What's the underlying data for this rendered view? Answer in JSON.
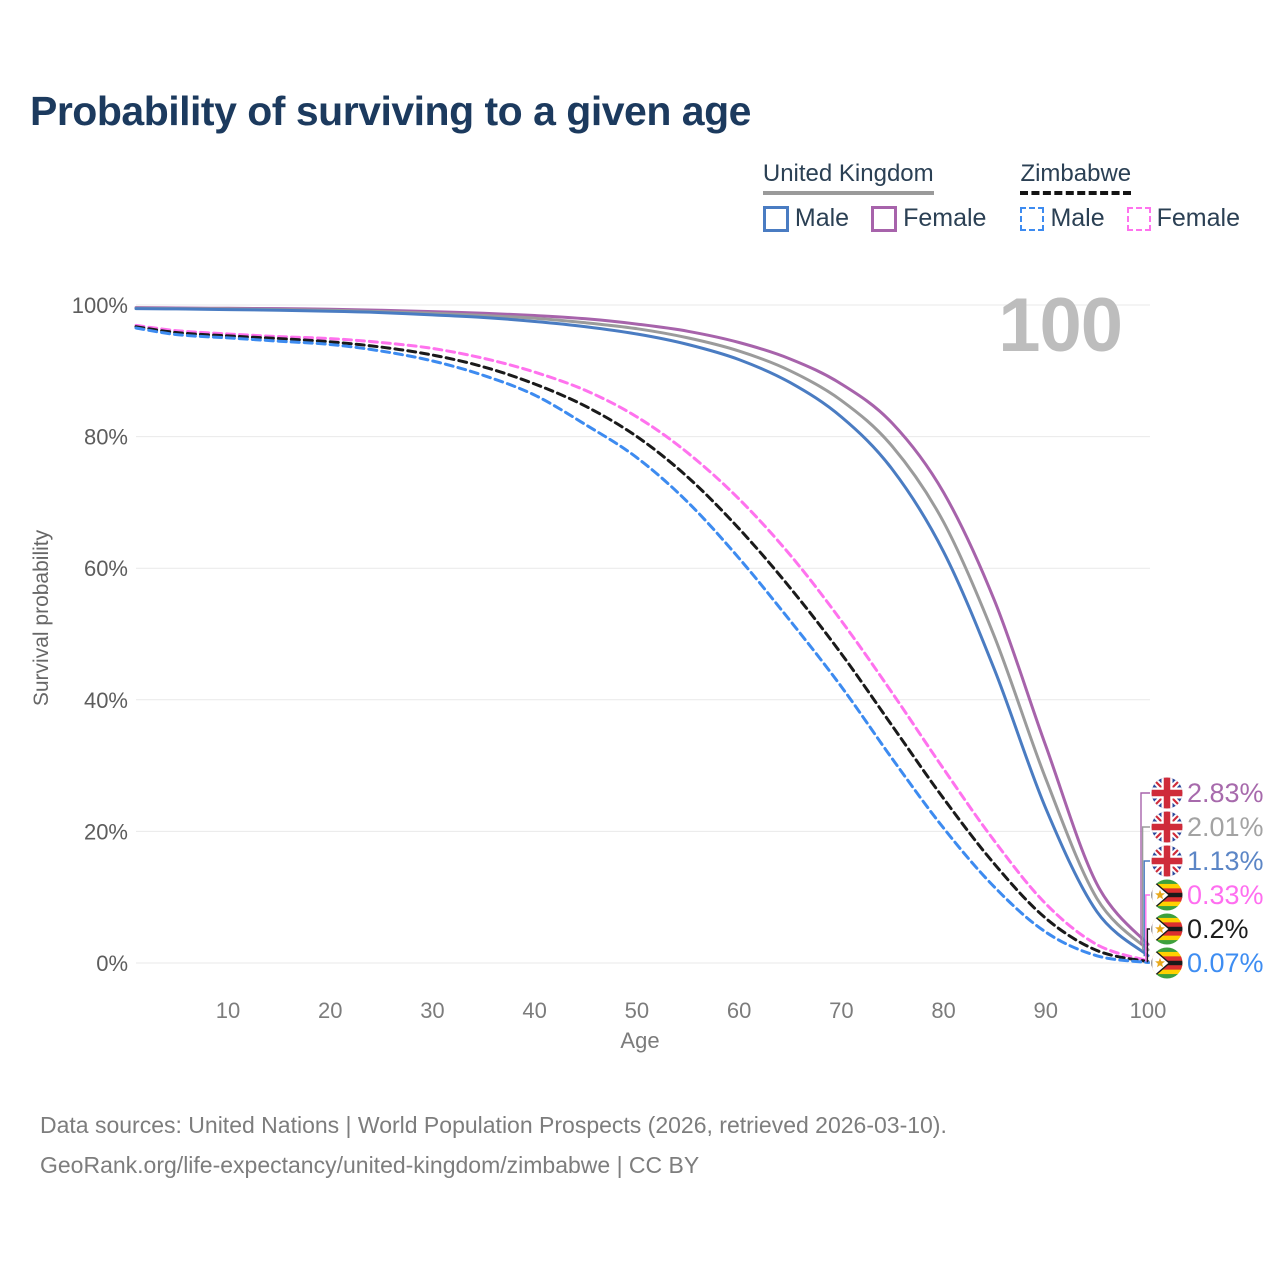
{
  "title": "Probability of surviving to a given age",
  "watermark": "100",
  "legend": {
    "groups": [
      {
        "id": "uk",
        "title": "United Kingdom",
        "line_style": "solid",
        "line_color": "#9a9a9a",
        "items": [
          {
            "label": "Male",
            "color": "#4a7cc2"
          },
          {
            "label": "Female",
            "color": "#a763ab"
          }
        ]
      },
      {
        "id": "zw",
        "title": "Zimbabwe",
        "line_style": "dashed",
        "line_color": "#141414",
        "items": [
          {
            "label": "Male",
            "color": "#3d8bf0"
          },
          {
            "label": "Female",
            "color": "#ff72ee"
          }
        ]
      }
    ]
  },
  "axes": {
    "y_label": "Survival probability",
    "x_label": "Age",
    "y_tick_values": [
      0,
      20,
      40,
      60,
      80,
      100
    ],
    "y_tick_labels": [
      "0%",
      "20%",
      "40%",
      "60%",
      "80%",
      "100%"
    ],
    "x_ticks": [
      10,
      20,
      30,
      40,
      50,
      60,
      70,
      80,
      90,
      100
    ]
  },
  "chart_data": {
    "type": "line",
    "title": "Probability of surviving to a given age",
    "xlabel": "Age",
    "ylabel": "Survival probability",
    "xlim": [
      1,
      100
    ],
    "ylim": [
      0,
      100
    ],
    "grid": "horizontal",
    "x": [
      1,
      5,
      10,
      15,
      20,
      25,
      30,
      35,
      40,
      45,
      50,
      55,
      60,
      65,
      70,
      75,
      80,
      85,
      90,
      95,
      100
    ],
    "series": [
      {
        "id": "uk-female",
        "name": "United Kingdom Female",
        "country": "United Kingdom",
        "sex": "Female",
        "color": "#a763ab",
        "dashed": false,
        "end_label": "2.83%",
        "end_label_color": "#a76aac",
        "flag": "uk",
        "values": [
          99.6,
          99.55,
          99.5,
          99.45,
          99.35,
          99.2,
          99.0,
          98.75,
          98.4,
          97.9,
          97.1,
          96.0,
          94.3,
          91.8,
          88.0,
          82.0,
          71.5,
          55.0,
          33.0,
          12.0,
          2.83
        ]
      },
      {
        "id": "uk-all",
        "name": "United Kingdom All",
        "country": "United Kingdom",
        "sex": "All",
        "color": "#9b9b9b",
        "dashed": false,
        "end_label": "2.01%",
        "end_label_color": "#a3a3a3",
        "flag": "uk",
        "values": [
          99.5,
          99.45,
          99.4,
          99.3,
          99.2,
          99.0,
          98.75,
          98.4,
          98.0,
          97.3,
          96.4,
          95.0,
          93.0,
          90.0,
          85.5,
          78.5,
          67.0,
          49.5,
          28.0,
          9.8,
          2.01
        ]
      },
      {
        "id": "uk-male",
        "name": "United Kingdom Male",
        "country": "United Kingdom",
        "sex": "Male",
        "color": "#4a7cc2",
        "dashed": false,
        "end_label": "1.13%",
        "end_label_color": "#5c86c6",
        "flag": "uk",
        "values": [
          99.45,
          99.4,
          99.3,
          99.2,
          99.05,
          98.85,
          98.5,
          98.1,
          97.5,
          96.7,
          95.6,
          94.0,
          91.7,
          88.2,
          83.0,
          75.0,
          62.5,
          44.5,
          23.5,
          7.8,
          1.13
        ]
      },
      {
        "id": "zw-female",
        "name": "Zimbabwe Female",
        "country": "Zimbabwe",
        "sex": "Female",
        "color": "#ff72ee",
        "dashed": true,
        "end_label": "0.33%",
        "end_label_color": "#ff6ef0",
        "flag": "zw",
        "values": [
          96.9,
          96.1,
          95.6,
          95.2,
          94.9,
          94.3,
          93.4,
          91.9,
          89.8,
          87.0,
          83.0,
          77.5,
          70.5,
          62.0,
          52.0,
          41.0,
          29.5,
          18.5,
          9.0,
          2.8,
          0.33
        ]
      },
      {
        "id": "zw-all",
        "name": "Zimbabwe All",
        "country": "Zimbabwe",
        "sex": "All",
        "color": "#1a1a1a",
        "dashed": true,
        "end_label": "0.2%",
        "end_label_color": "#1c1c1c",
        "flag": "zw",
        "values": [
          96.7,
          95.8,
          95.3,
          94.9,
          94.4,
          93.6,
          92.4,
          90.6,
          88.0,
          84.6,
          80.0,
          73.8,
          66.0,
          57.0,
          47.0,
          36.0,
          25.0,
          15.0,
          6.8,
          1.9,
          0.2
        ]
      },
      {
        "id": "zw-male",
        "name": "Zimbabwe Male",
        "country": "Zimbabwe",
        "sex": "Male",
        "color": "#3d8bf0",
        "dashed": true,
        "end_label": "0.07%",
        "end_label_color": "#3e8df2",
        "flag": "zw",
        "values": [
          96.5,
          95.5,
          95.0,
          94.5,
          94.0,
          93.0,
          91.5,
          89.3,
          86.3,
          81.8,
          76.8,
          70.0,
          61.5,
          52.0,
          42.0,
          31.0,
          20.5,
          11.5,
          4.7,
          1.1,
          0.07
        ]
      }
    ]
  },
  "footer": {
    "line1": "Data sources: United Nations | World Population Prospects (2026, retrieved 2026-03-10).",
    "line2": "GeoRank.org/life-expectancy/united-kingdom/zimbabwe | CC BY"
  }
}
